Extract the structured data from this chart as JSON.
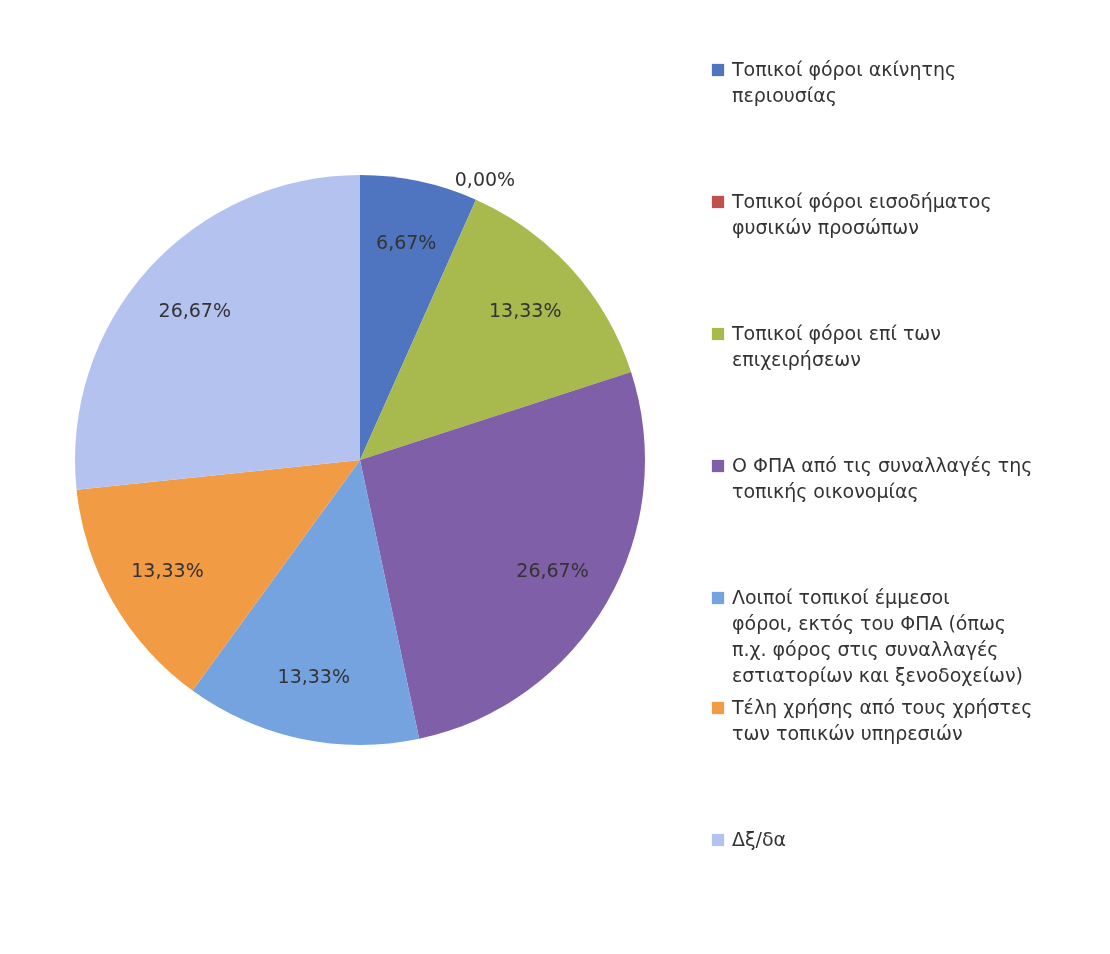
{
  "chart_data": {
    "type": "pie",
    "categories": [
      "Τοπικοί φόροι ακίνητης περιουσίας",
      "Τοπικοί φόροι εισοδήματος φυσικών προσώπων",
      "Τοπικοί φόροι επί των επιχειρήσεων",
      "Ο ΦΠΑ από τις συναλλαγές της τοπικής οικονομίας",
      "Λοιποί τοπικοί έμμεσοι φόροι, εκτός του ΦΠΑ (όπως π.χ. φόρος στις συναλλαγές εστιατορίων και ξενοδοχείων)",
      "Τέλη χρήσης από τους χρήστες των τοπικών υπηρεσιών",
      "Δξ/δα"
    ],
    "values": [
      6.67,
      0.0,
      13.33,
      26.67,
      13.33,
      13.33,
      26.67
    ],
    "value_labels": [
      "6,67%",
      "0,00%",
      "13,33%",
      "26,67%",
      "13,33%",
      "13,33%",
      "26,67%"
    ],
    "colors": [
      "#4f74c0",
      "#c0504d",
      "#a8b94e",
      "#7f5fa8",
      "#74a3e0",
      "#f29b45",
      "#b4c2f0"
    ],
    "legend": "right"
  }
}
